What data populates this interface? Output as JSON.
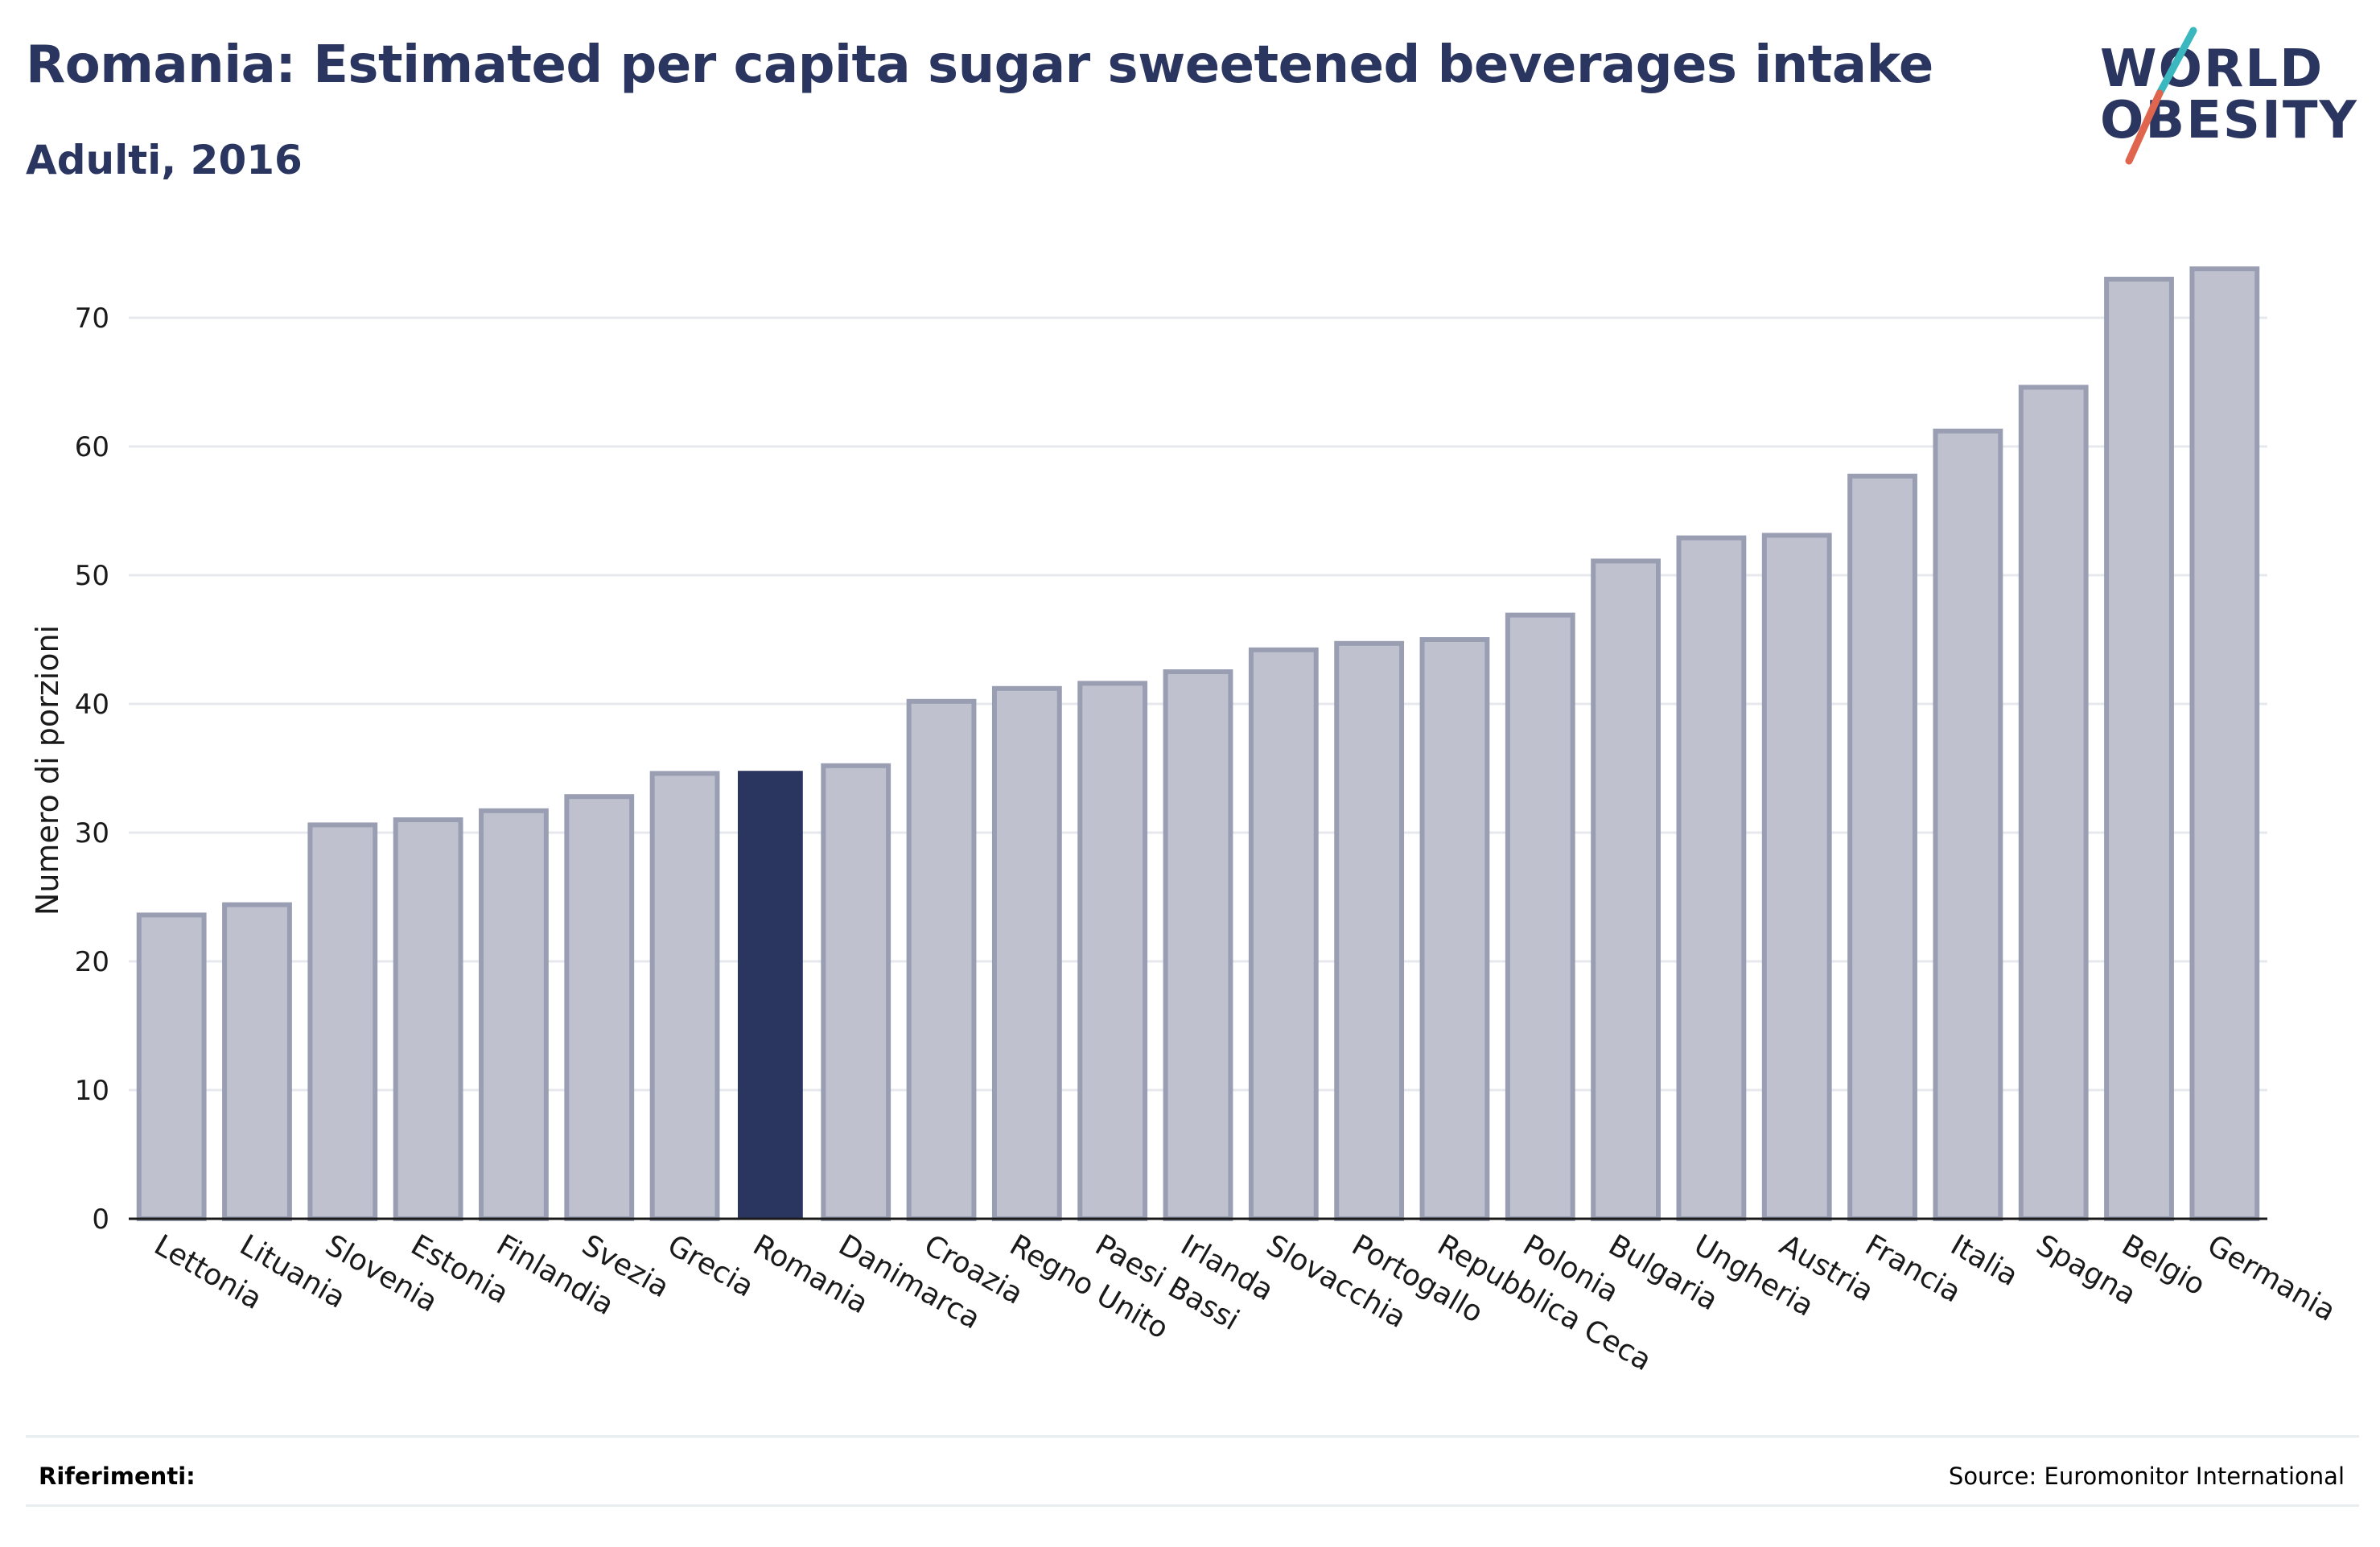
{
  "title": "Romania: Estimated per capita sugar sweetened beverages intake",
  "subtitle": "Adulti, 2016",
  "logo": {
    "line1": "WORLD",
    "line2": "OBESITY",
    "accent_teal": "#3ab7bf",
    "accent_coral": "#e0654f"
  },
  "footer": {
    "references_label": "Riferimenti:",
    "source": "Source: Euromonitor International"
  },
  "colors": {
    "highlight": "#2a3560",
    "bar_fill": "#bfc1ce",
    "bar_stroke": "#9a9eb3",
    "text": "#2a3560",
    "grid": "#e6e8ee"
  },
  "chart_data": {
    "type": "bar",
    "title": "Romania: Estimated per capita sugar sweetened beverages intake",
    "subtitle": "Adulti, 2016",
    "xlabel": "",
    "ylabel": "Numero di porzioni",
    "ylim": [
      0,
      75
    ],
    "yticks": [
      0,
      10,
      20,
      30,
      40,
      50,
      60,
      70
    ],
    "grid": true,
    "highlight": "Romania",
    "categories": [
      "Lettonia",
      "Lituania",
      "Slovenia",
      "Estonia",
      "Finlandia",
      "Svezia",
      "Grecia",
      "Romania",
      "Danimarca",
      "Croazia",
      "Regno Unito",
      "Paesi Bassi",
      "Irlanda",
      "Slovacchia",
      "Portogallo",
      "Repubblica Ceca",
      "Polonia",
      "Bulgaria",
      "Ungheria",
      "Austria",
      "Francia",
      "Italia",
      "Spagna",
      "Belgio",
      "Germania"
    ],
    "values": [
      23.6,
      24.4,
      30.6,
      31.0,
      31.7,
      32.8,
      34.6,
      34.8,
      35.2,
      40.2,
      41.2,
      41.6,
      42.5,
      44.2,
      44.7,
      45.0,
      46.9,
      51.1,
      52.9,
      53.1,
      57.7,
      61.2,
      64.6,
      73.0,
      73.8
    ]
  }
}
